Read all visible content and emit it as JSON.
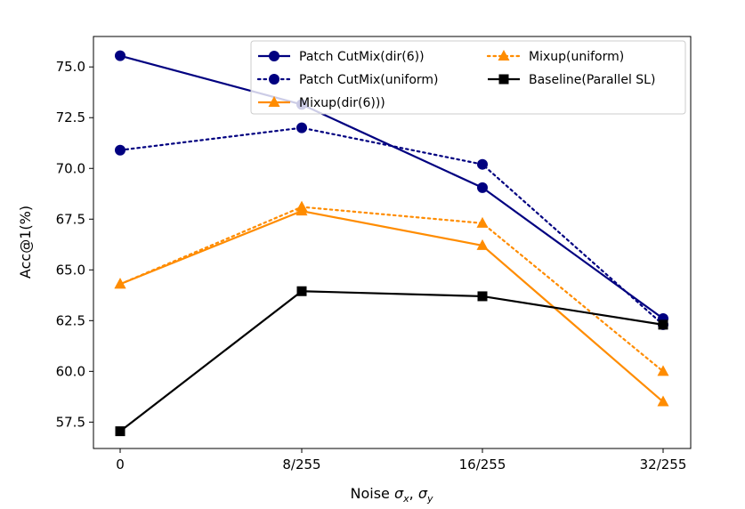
{
  "chart_data": {
    "type": "line",
    "title": "",
    "xlabel": "Noise σx, σy",
    "xlabel_parts": {
      "prefix": "Noise ",
      "sym1": "σ",
      "sub1": "x",
      "sep": ", ",
      "sym2": "σ",
      "sub2": "y"
    },
    "ylabel": "Acc@1(%)",
    "categories": [
      "0",
      "8/255",
      "16/255",
      "32/255"
    ],
    "ylim": [
      56.2,
      76.5
    ],
    "yticks": [
      57.5,
      60.0,
      62.5,
      65.0,
      67.5,
      70.0,
      72.5,
      75.0
    ],
    "ytick_labels": [
      "57.5",
      "60.0",
      "62.5",
      "65.0",
      "67.5",
      "70.0",
      "72.5",
      "75.0"
    ],
    "legend_position": "top-right",
    "series": [
      {
        "name": "Patch CutMix(dir(6))",
        "color": "#000080",
        "linestyle": "solid",
        "marker": "circle",
        "values": [
          75.55,
          73.15,
          69.05,
          62.6
        ]
      },
      {
        "name": "Patch CutMix(uniform)",
        "color": "#000080",
        "linestyle": "dotted",
        "marker": "circle",
        "values": [
          70.9,
          72.0,
          70.2,
          62.3
        ]
      },
      {
        "name": "Mixup(dir(6)))",
        "color": "#ff8c00",
        "linestyle": "solid",
        "marker": "triangle",
        "values": [
          64.3,
          67.9,
          66.2,
          58.5
        ]
      },
      {
        "name": "Mixup(uniform)",
        "color": "#ff8c00",
        "linestyle": "dotted",
        "marker": "triangle",
        "values": [
          64.3,
          68.1,
          67.3,
          60.0
        ]
      },
      {
        "name": "Baseline(Parallel SL)",
        "color": "#000000",
        "linestyle": "solid",
        "marker": "square",
        "values": [
          57.05,
          63.95,
          63.7,
          62.3
        ]
      }
    ]
  }
}
